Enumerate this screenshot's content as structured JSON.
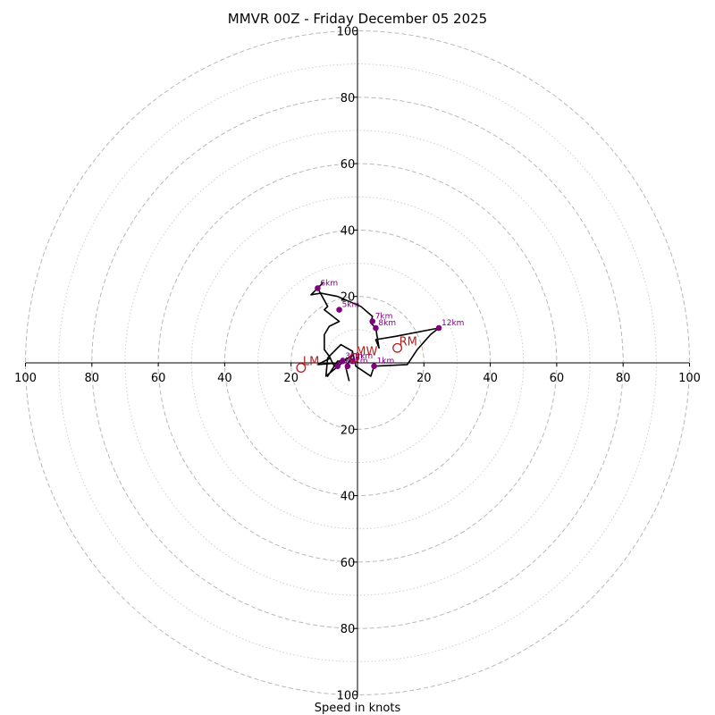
{
  "chart_data": {
    "type": "hodograph",
    "title": "MMVR 00Z - Friday December 05 2025",
    "xlabel": "Speed in knots",
    "xlim": [
      -100,
      100
    ],
    "ylim": [
      -100,
      100
    ],
    "ring_major": [
      20,
      40,
      60,
      80,
      100
    ],
    "ring_minor": [
      10,
      30,
      50,
      70,
      90
    ],
    "x_ticks": [
      "100",
      "80",
      "60",
      "40",
      "20",
      "20",
      "40",
      "60",
      "80",
      "100"
    ],
    "y_ticks": [
      "100",
      "80",
      "60",
      "40",
      "20",
      "20",
      "40",
      "60",
      "80",
      "100"
    ],
    "wind_trace": [
      [
        -2.5,
        -5.5
      ],
      [
        -3.5,
        -1.5
      ],
      [
        -1.5,
        2.5
      ],
      [
        -9.5,
        -4.0
      ],
      [
        -9.0,
        1.5
      ],
      [
        -5.0,
        5.5
      ],
      [
        -1.5,
        3.5
      ],
      [
        -0.5,
        -1.0
      ],
      [
        4.0,
        -4.0
      ],
      [
        5.0,
        -1.0
      ],
      [
        15.0,
        -0.5
      ],
      [
        18.0,
        4.0
      ],
      [
        22.0,
        8.5
      ],
      [
        24.5,
        10.5
      ],
      [
        11.5,
        8.0
      ],
      [
        5.5,
        7.0
      ],
      [
        6.5,
        4.5
      ],
      [
        5.5,
        10.5
      ],
      [
        4.0,
        12.0
      ],
      [
        4.5,
        14.0
      ],
      [
        1.0,
        17.0
      ],
      [
        -6.0,
        20.0
      ],
      [
        -11.0,
        21.0
      ],
      [
        -14.0,
        20.5
      ],
      [
        -10.5,
        24.0
      ],
      [
        -12.0,
        22.5
      ],
      [
        -9.0,
        17.0
      ],
      [
        -10.0,
        16.0
      ],
      [
        -5.5,
        12.5
      ],
      [
        -8.5,
        11.0
      ],
      [
        -10.0,
        8.5
      ],
      [
        -10.0,
        4.0
      ],
      [
        -8.5,
        2.0
      ],
      [
        -7.0,
        -1.0
      ],
      [
        -9.0,
        -4.0
      ],
      [
        -6.0,
        0.5
      ],
      [
        -4.5,
        0.5
      ],
      [
        -2.0,
        2.0
      ],
      [
        -5.5,
        0.0
      ],
      [
        -12.0,
        -0.5
      ],
      [
        -8.0,
        1.5
      ]
    ],
    "height_points": [
      {
        "label": "1km",
        "u": 5.0,
        "v": -1.0
      },
      {
        "label": "2km",
        "u": -1.5,
        "v": 0.5
      },
      {
        "label": "3km",
        "u": -4.5,
        "v": 0.5
      },
      {
        "label": "4km",
        "u": -3.0,
        "v": -1.0
      },
      {
        "label": "5km",
        "u": -5.5,
        "v": 16.0
      },
      {
        "label": "6km",
        "u": -12.0,
        "v": 22.5
      },
      {
        "label": "7km",
        "u": 4.5,
        "v": 12.5
      },
      {
        "label": "8km",
        "u": 5.5,
        "v": 10.5
      },
      {
        "label": "9km",
        "u": -6.0,
        "v": -1.0
      },
      {
        "label": "12km",
        "u": 24.5,
        "v": 10.5
      }
    ],
    "motion_vectors": [
      {
        "label": "RM",
        "u": 12.0,
        "v": 4.5
      },
      {
        "label": "LM",
        "u": -17.0,
        "v": -1.5
      },
      {
        "label": "MW",
        "u": -1.0,
        "v": 1.5
      }
    ]
  }
}
